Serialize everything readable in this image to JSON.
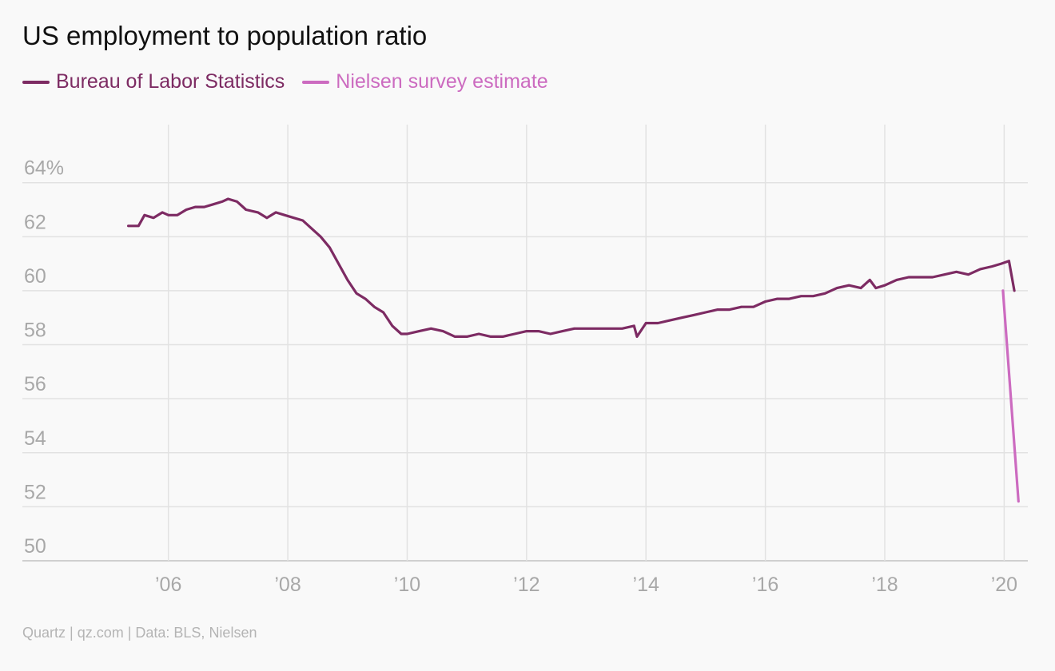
{
  "chart_data": {
    "type": "line",
    "title": "US employment to population ratio",
    "source": "Quartz | qz.com | Data: BLS, Nielsen",
    "y_unit_suffix": "%",
    "ylim": [
      50,
      65.5
    ],
    "xlim": [
      2005.0,
      2020.45
    ],
    "grid": true,
    "legend_position": "top-left",
    "y_ticks": [
      {
        "value": 64,
        "label": "64%"
      },
      {
        "value": 62,
        "label": "62"
      },
      {
        "value": 60,
        "label": "60"
      },
      {
        "value": 58,
        "label": "58"
      },
      {
        "value": 56,
        "label": "56"
      },
      {
        "value": 54,
        "label": "54"
      },
      {
        "value": 52,
        "label": "52"
      },
      {
        "value": 50,
        "label": "50"
      }
    ],
    "x_ticks": [
      {
        "value": 2006,
        "label": "’06"
      },
      {
        "value": 2008,
        "label": "’08"
      },
      {
        "value": 2010,
        "label": "’10"
      },
      {
        "value": 2012,
        "label": "’12"
      },
      {
        "value": 2014,
        "label": "’14"
      },
      {
        "value": 2016,
        "label": "’16"
      },
      {
        "value": 2018,
        "label": "’18"
      },
      {
        "value": 2020,
        "label": "’20"
      }
    ],
    "series": [
      {
        "name": "Bureau of Labor Statistics",
        "color": "#7d2b63",
        "x": [
          2005.33,
          2005.5,
          2005.6,
          2005.75,
          2005.9,
          2006.0,
          2006.15,
          2006.3,
          2006.45,
          2006.6,
          2006.75,
          2006.9,
          2007.0,
          2007.15,
          2007.3,
          2007.5,
          2007.65,
          2007.8,
          2007.95,
          2008.1,
          2008.25,
          2008.4,
          2008.55,
          2008.7,
          2008.85,
          2009.0,
          2009.15,
          2009.3,
          2009.45,
          2009.6,
          2009.75,
          2009.9,
          2010.0,
          2010.2,
          2010.4,
          2010.6,
          2010.8,
          2011.0,
          2011.2,
          2011.4,
          2011.6,
          2011.8,
          2012.0,
          2012.2,
          2012.4,
          2012.6,
          2012.8,
          2013.0,
          2013.2,
          2013.4,
          2013.6,
          2013.8,
          2013.85,
          2014.0,
          2014.2,
          2014.4,
          2014.6,
          2014.8,
          2015.0,
          2015.2,
          2015.4,
          2015.6,
          2015.8,
          2016.0,
          2016.2,
          2016.4,
          2016.6,
          2016.8,
          2017.0,
          2017.2,
          2017.4,
          2017.6,
          2017.75,
          2017.85,
          2018.0,
          2018.2,
          2018.4,
          2018.6,
          2018.8,
          2019.0,
          2019.2,
          2019.4,
          2019.6,
          2019.8,
          2019.95,
          2020.08,
          2020.17
        ],
        "values": [
          62.4,
          62.4,
          62.8,
          62.7,
          62.9,
          62.8,
          62.8,
          63.0,
          63.1,
          63.1,
          63.2,
          63.3,
          63.4,
          63.3,
          63.0,
          62.9,
          62.7,
          62.9,
          62.8,
          62.7,
          62.6,
          62.3,
          62.0,
          61.6,
          61.0,
          60.4,
          59.9,
          59.7,
          59.4,
          59.2,
          58.7,
          58.4,
          58.4,
          58.5,
          58.6,
          58.5,
          58.3,
          58.3,
          58.4,
          58.3,
          58.3,
          58.4,
          58.5,
          58.5,
          58.4,
          58.5,
          58.6,
          58.6,
          58.6,
          58.6,
          58.6,
          58.7,
          58.3,
          58.8,
          58.8,
          58.9,
          59.0,
          59.1,
          59.2,
          59.3,
          59.3,
          59.4,
          59.4,
          59.6,
          59.7,
          59.7,
          59.8,
          59.8,
          59.9,
          60.1,
          60.2,
          60.1,
          60.4,
          60.1,
          60.2,
          60.4,
          60.5,
          60.5,
          60.5,
          60.6,
          60.7,
          60.6,
          60.8,
          60.9,
          61.0,
          61.1,
          60.0
        ]
      },
      {
        "name": "Nielsen survey estimate",
        "color": "#cc6bc0",
        "x": [
          2019.98,
          2020.24
        ],
        "values": [
          60.0,
          52.2
        ]
      }
    ]
  }
}
